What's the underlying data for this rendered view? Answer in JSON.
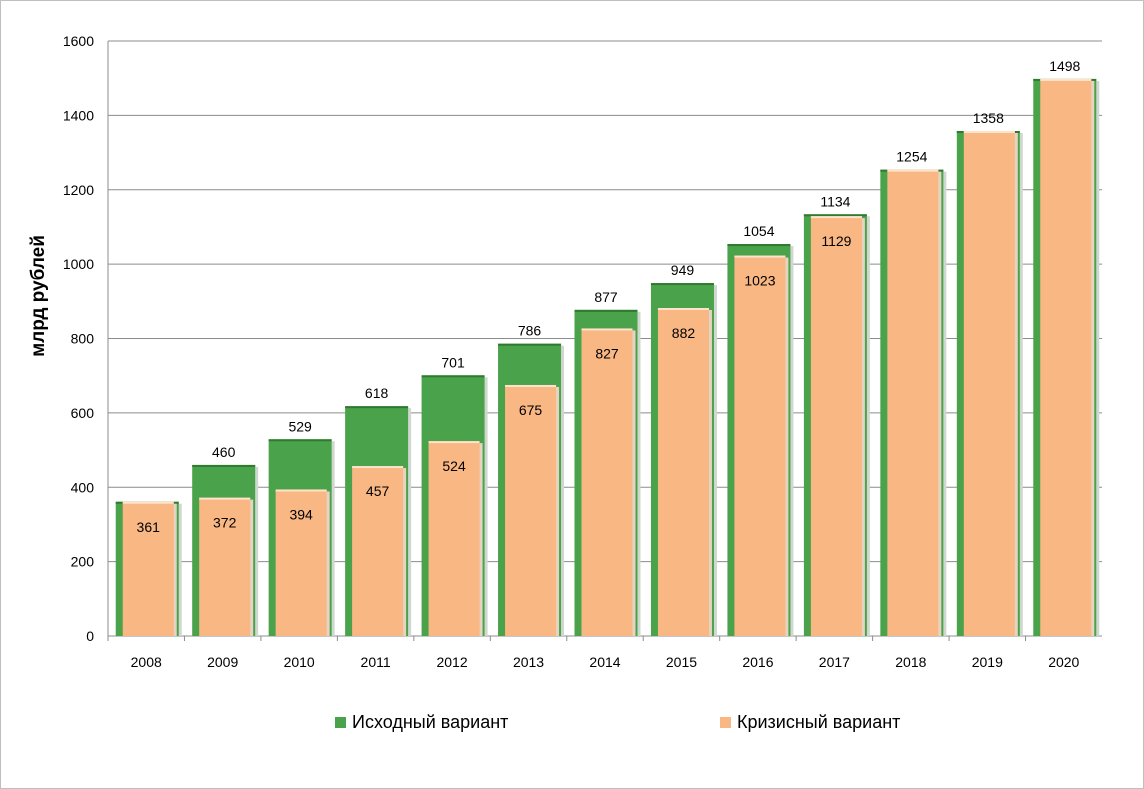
{
  "chart_data": {
    "type": "bar",
    "ylabel": "млрд рублей",
    "xlabel": "",
    "ylim": [
      0,
      1600
    ],
    "yticks": [
      0,
      200,
      400,
      600,
      800,
      1000,
      1200,
      1400,
      1600
    ],
    "grid": true,
    "legend_position": "bottom",
    "categories": [
      "2008",
      "2009",
      "2010",
      "2011",
      "2012",
      "2013",
      "2014",
      "2015",
      "2016",
      "2017",
      "2018",
      "2019",
      "2020"
    ],
    "series": [
      {
        "name": "Исходный вариант",
        "color": "#4aa34a",
        "values": [
          361,
          460,
          529,
          618,
          701,
          786,
          877,
          949,
          1054,
          1134,
          1254,
          1358,
          1498
        ],
        "labels": [
          "",
          "460",
          "529",
          "618",
          "701",
          "786",
          "877",
          "949",
          "1054",
          "1134",
          "1254",
          "1358",
          "1498"
        ]
      },
      {
        "name": "Кризисный вариант",
        "color": "#f9b784",
        "values": [
          361,
          372,
          394,
          457,
          524,
          675,
          827,
          882,
          1023,
          1129,
          1254,
          1358,
          1498
        ],
        "labels": [
          "361",
          "372",
          "394",
          "457",
          "524",
          "675",
          "827",
          "882",
          "1023",
          "1129",
          "",
          "",
          ""
        ]
      }
    ]
  }
}
